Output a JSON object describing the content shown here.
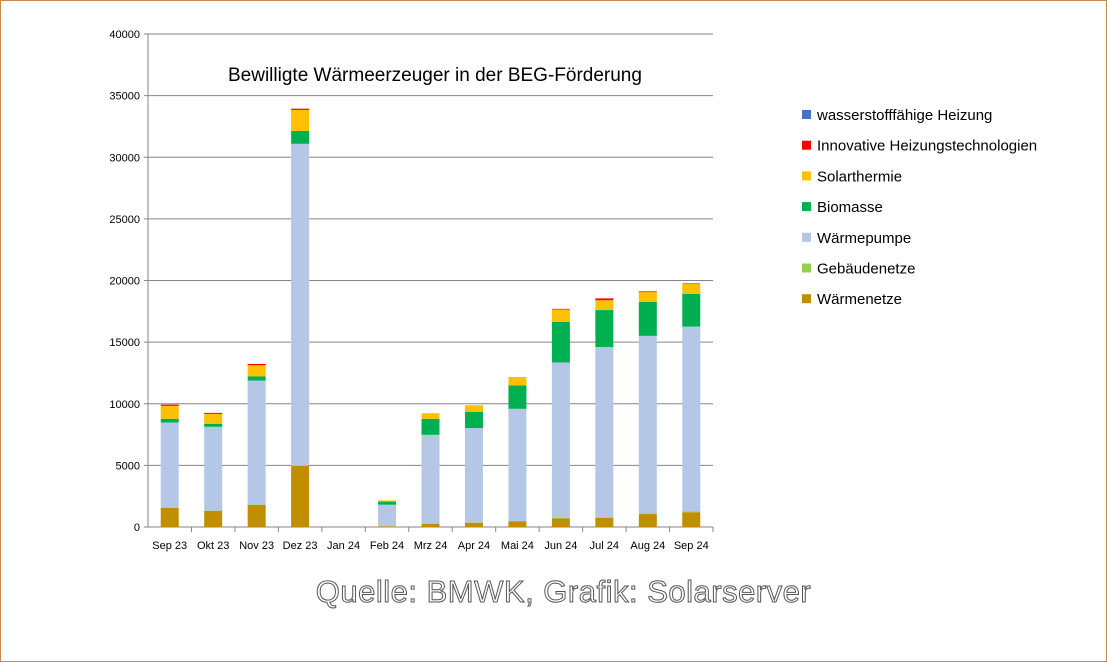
{
  "chart_data": {
    "type": "bar",
    "stacked": true,
    "title": "Bewilligte Wärmeerzeuger in der BEG-Förderung",
    "xlabel": "",
    "ylabel": "",
    "ylim": [
      0,
      40000
    ],
    "yticks": [
      0,
      5000,
      10000,
      15000,
      20000,
      25000,
      30000,
      35000,
      40000
    ],
    "grid": true,
    "legend_position": "right",
    "categories": [
      "Sep 23",
      "Okt 23",
      "Nov 23",
      "Dez 23",
      "Jan 24",
      "Feb 24",
      "Mrz 24",
      "Apr 24",
      "Mai 24",
      "Jun 24",
      "Jul 24",
      "Aug 24",
      "Sep 24"
    ],
    "series": [
      {
        "name": "Wärmenetze",
        "color": "#bf8f00",
        "values": [
          1550,
          1300,
          1800,
          4950,
          0,
          50,
          250,
          350,
          450,
          700,
          750,
          1050,
          1200
        ]
      },
      {
        "name": "Gebäudenetze",
        "color": "#92d050",
        "values": [
          30,
          30,
          30,
          40,
          0,
          10,
          30,
          30,
          40,
          50,
          50,
          60,
          60
        ]
      },
      {
        "name": "Wärmepumpe",
        "color": "#b4c7e7",
        "values": [
          6900,
          6800,
          10050,
          26100,
          0,
          1750,
          7200,
          7650,
          9100,
          12600,
          13800,
          14400,
          15000
        ]
      },
      {
        "name": "Biomasse",
        "color": "#00b050",
        "values": [
          300,
          250,
          350,
          1050,
          0,
          250,
          1300,
          1300,
          1900,
          3300,
          3000,
          2750,
          2650
        ]
      },
      {
        "name": "Solarthermie",
        "color": "#ffc000",
        "values": [
          1050,
          800,
          900,
          1700,
          0,
          100,
          400,
          500,
          600,
          1000,
          800,
          800,
          800
        ]
      },
      {
        "name": "Innovative Heizungstechnologien",
        "color": "#ff0000",
        "values": [
          100,
          80,
          100,
          100,
          0,
          0,
          20,
          20,
          30,
          50,
          150,
          60,
          50
        ]
      },
      {
        "name": "wasserstofffähige Heizung",
        "color": "#4472c4",
        "values": [
          0,
          0,
          0,
          0,
          0,
          0,
          0,
          0,
          0,
          0,
          0,
          0,
          0
        ]
      }
    ]
  },
  "source": "Quelle: BMWK, Grafik: Solarserver"
}
